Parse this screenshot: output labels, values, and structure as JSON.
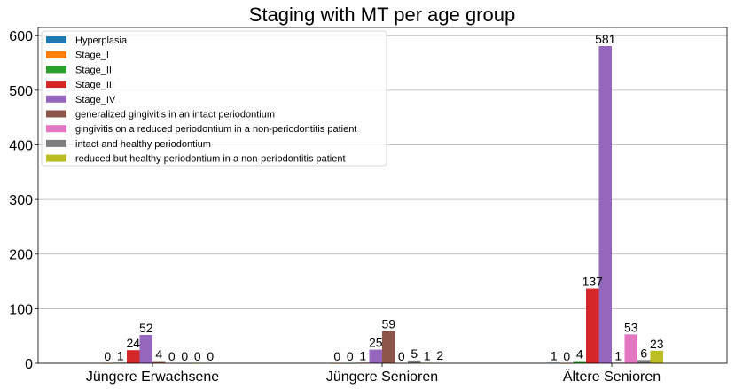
{
  "chart_data": {
    "type": "bar",
    "title": "Staging with MT per age group",
    "xlabel": "",
    "ylabel": "",
    "categories": [
      "Jüngere Erwachsene",
      "Jüngere Senioren",
      "Ältere Senioren"
    ],
    "ylim": [
      0,
      615
    ],
    "yticks": [
      0,
      100,
      200,
      300,
      400,
      500,
      600
    ],
    "grid": "horizontal",
    "legend_position": "top-left",
    "series": [
      {
        "name": "Hyperplasia",
        "color": "#1f77b4",
        "values": [
          null,
          null,
          1
        ]
      },
      {
        "name": "Stage_I",
        "color": "#ff7f0e",
        "values": [
          0,
          0,
          0
        ]
      },
      {
        "name": "Stage_II",
        "color": "#2ca02c",
        "values": [
          1,
          0,
          4
        ]
      },
      {
        "name": "Stage_III",
        "color": "#d62728",
        "values": [
          24,
          1,
          137
        ]
      },
      {
        "name": "Stage_IV",
        "color": "#9467bd",
        "values": [
          52,
          25,
          581
        ]
      },
      {
        "name": "generalized gingivitis in an intact periodontium",
        "color": "#8c564b",
        "values": [
          4,
          59,
          1
        ]
      },
      {
        "name": "gingivitis on a reduced periodontium in a non-periodontitis patient",
        "color": "#e377c2",
        "values": [
          0,
          0,
          53
        ]
      },
      {
        "name": "intact and healthy periodontium",
        "color": "#7f7f7f",
        "values": [
          0,
          5,
          6
        ]
      },
      {
        "name": "reduced but healthy periodontium in a non-periodontitis patient",
        "color": "#bcbd22",
        "values": [
          0,
          1,
          23
        ]
      }
    ],
    "extra_labels": [
      {
        "category_index": 0,
        "after_series": 8,
        "value": 0
      },
      {
        "category_index": 1,
        "after_series": 8,
        "value": 2
      }
    ]
  }
}
